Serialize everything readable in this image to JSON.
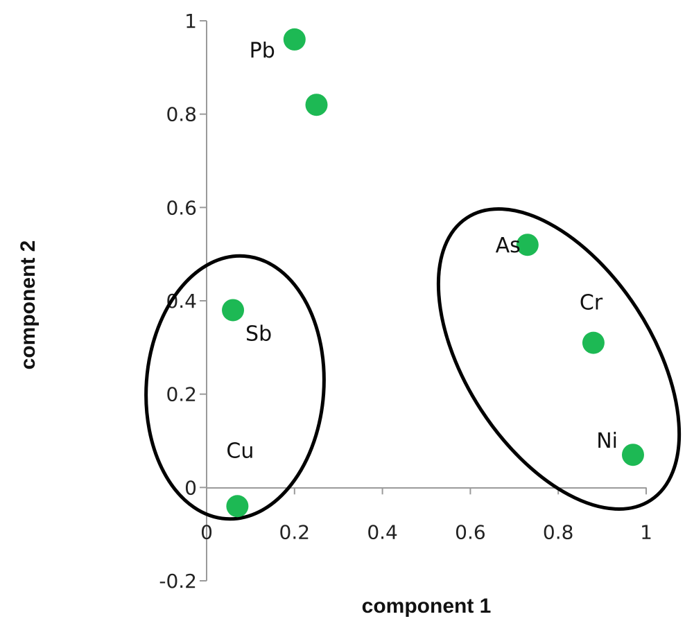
{
  "chart_data": {
    "type": "scatter",
    "xlabel": "component 1",
    "ylabel": "component 2",
    "xlim": [
      0,
      1
    ],
    "ylim": [
      -0.2,
      1
    ],
    "x_ticks": [
      "0",
      "0.2",
      "0.4",
      "0.6",
      "0.8",
      "1"
    ],
    "y_ticks": [
      "-0.2",
      "0",
      "0.2",
      "0.4",
      "0.6",
      "0.8",
      "1"
    ],
    "grid": false,
    "series": [
      {
        "points": [
          {
            "label": "Pb",
            "x": 0.2,
            "y": 0.96
          },
          {
            "label": "",
            "x": 0.25,
            "y": 0.82
          },
          {
            "label": "As",
            "x": 0.73,
            "y": 0.52
          },
          {
            "label": "Sb",
            "x": 0.06,
            "y": 0.38
          },
          {
            "label": "Cr",
            "x": 0.88,
            "y": 0.31
          },
          {
            "label": "Ni",
            "x": 0.97,
            "y": 0.07
          },
          {
            "label": "Cu",
            "x": 0.07,
            "y": -0.04
          }
        ]
      }
    ],
    "colors": {
      "marker": "#1db954",
      "ellipse": "#000000",
      "axis": "#9a9a9a"
    },
    "annotations": [
      "ellipse around Sb and Cu",
      "ellipse around As, Cr and Ni"
    ]
  }
}
